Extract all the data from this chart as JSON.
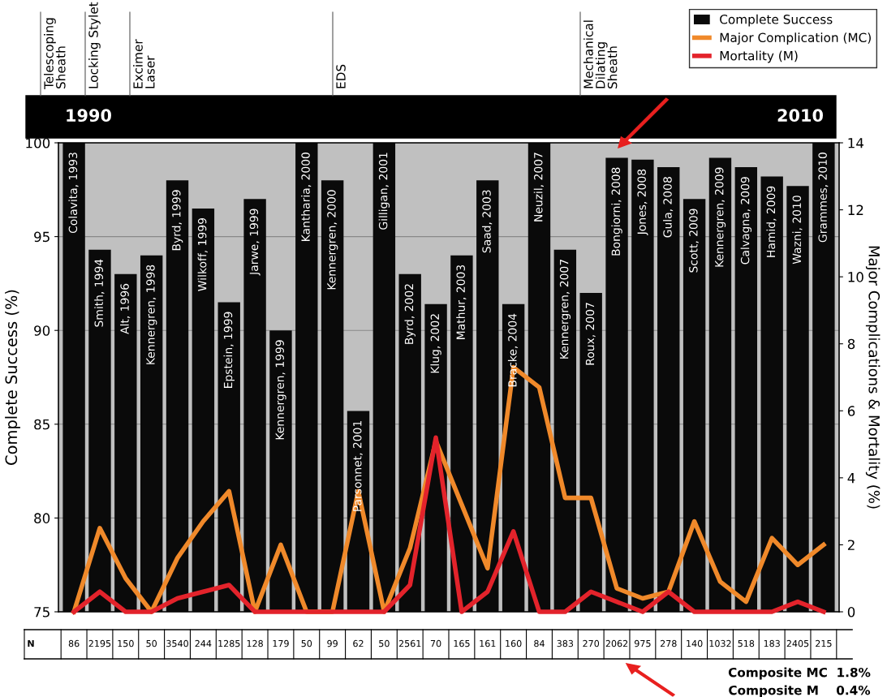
{
  "chart_data": {
    "type": "bar",
    "ylabel": "Complete Success (%)",
    "y2label": "Major Complications & Mortality (%)",
    "categories": [
      "Colavita, 1993",
      "Smith, 1994",
      "Alt, 1996",
      "Kennergren, 1998",
      "Byrd, 1999",
      "Wilkoff, 1999",
      "Epstein, 1999",
      "Jarwe, 1999",
      "Kennergren, 1999",
      "Kantharia, 2000",
      "Kennergren, 2000",
      "Parsonnet, 2001",
      "Gilligan, 2001",
      "Byrd, 2002",
      "Klug, 2002",
      "Mathur, 2003",
      "Saad, 2003",
      "Bracke, 2004",
      "Neuzil, 2007",
      "Kennergren, 2007",
      "Roux, 2007",
      "Bongiorni, 2008",
      "Jones, 2008",
      "Gula, 2008",
      "Scott, 2009",
      "Kennergren, 2009",
      "Calvagna, 2009",
      "Hamid, 2009",
      "Wazni, 2010",
      "Grammes, 2010"
    ],
    "ylim": [
      75,
      100
    ],
    "yticks": [
      75,
      80,
      85,
      90,
      95,
      100
    ],
    "y2lim": [
      0,
      14
    ],
    "y2ticks": [
      0,
      2,
      4,
      6,
      8,
      10,
      12,
      14
    ],
    "grid": "y",
    "legend": "top right",
    "series": [
      {
        "name": "Complete Success",
        "color": "#0a0a0a",
        "values": [
          100,
          94.3,
          93.0,
          94.0,
          98.0,
          96.5,
          91.5,
          97.0,
          90.0,
          100,
          98.0,
          85.7,
          100,
          93.0,
          91.4,
          94.0,
          98.0,
          91.4,
          100,
          94.3,
          92.0,
          99.2,
          99.1,
          98.7,
          97.0,
          99.2,
          98.7,
          98.2,
          97.7,
          100
        ]
      },
      {
        "name": "Major Complication (MC)",
        "type": "line",
        "axis": "y2",
        "color": "#f0892a",
        "values": [
          0,
          2.5,
          1.0,
          0,
          1.6,
          2.7,
          3.6,
          0,
          2.0,
          0,
          0,
          3.6,
          0,
          1.9,
          5.1,
          3.2,
          1.3,
          7.3,
          6.7,
          3.4,
          3.4,
          0.7,
          0.4,
          0.6,
          2.7,
          0.9,
          0.3,
          2.2,
          1.4,
          2.0
        ]
      },
      {
        "name": "Mortality (M)",
        "type": "line",
        "axis": "y2",
        "color": "#e3232b",
        "values": [
          0,
          0.6,
          0,
          0,
          0.4,
          0.6,
          0.8,
          0,
          0,
          0,
          0,
          0,
          0,
          0.8,
          5.2,
          0,
          0.6,
          2.4,
          0,
          0,
          0.6,
          0.3,
          0,
          0.6,
          0,
          0,
          0,
          0,
          0.3,
          0
        ]
      }
    ],
    "annotations": [
      "Telescoping\nSheath",
      "Locking Stylet",
      "Excimer\nLaser",
      "EDS",
      "Mechanical\nDilating\nSheath",
      "1990",
      "2010",
      "N",
      "86",
      "2195",
      "150",
      "50",
      "3540",
      "244",
      "1285",
      "128",
      "179",
      "50",
      "99",
      "62",
      "50",
      "2561",
      "70",
      "165",
      "161",
      "160",
      "84",
      "383",
      "270",
      "2062",
      "975",
      "278",
      "140",
      "1032",
      "518",
      "183",
      "2405",
      "215",
      "Composite MC  1.8%",
      "Composite M    0.4%"
    ]
  }
}
